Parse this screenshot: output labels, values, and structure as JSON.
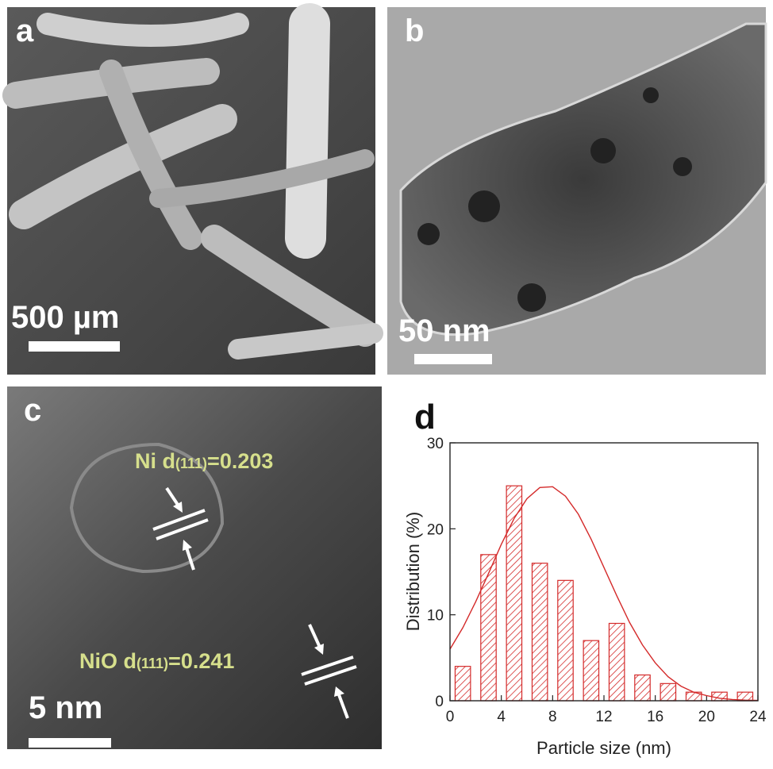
{
  "panels": {
    "a": {
      "label": "a",
      "scale": "500 µm"
    },
    "b": {
      "label": "b",
      "scale": "50 nm"
    },
    "c": {
      "label": "c",
      "scale": "5 nm",
      "ni": {
        "prefix": "Ni d",
        "sub": "(111)",
        "suffix": "=0.203"
      },
      "nio": {
        "prefix": "NiO d",
        "sub": "(111)",
        "suffix": "=0.241"
      }
    }
  },
  "chart_data": {
    "type": "bar",
    "panel_label": "d",
    "x_label": "Particle size (nm)",
    "y_label": "Distribution (%)",
    "x": [
      1,
      3,
      5,
      7,
      9,
      11,
      13,
      15,
      17,
      19,
      21,
      23
    ],
    "values": [
      4,
      17,
      25,
      16,
      14,
      7,
      9,
      3,
      2,
      1,
      1,
      1
    ],
    "color": "#d42a2a",
    "hatch": true,
    "fit": {
      "color": "#d42a2a",
      "x": [
        0,
        1,
        2,
        3,
        4,
        5,
        6,
        7,
        8,
        9,
        10,
        11,
        12,
        13,
        14,
        15,
        16,
        17,
        18,
        19,
        20,
        21,
        22,
        23,
        24
      ],
      "values": [
        6.0,
        8.5,
        11.5,
        14.8,
        18.2,
        21.2,
        23.5,
        24.8,
        24.9,
        23.8,
        21.7,
        18.8,
        15.5,
        12.2,
        9.1,
        6.5,
        4.4,
        2.8,
        1.7,
        1.0,
        0.6,
        0.3,
        0.15,
        0.07,
        0.04
      ]
    },
    "xlim": [
      0,
      24
    ],
    "xticks": [
      0,
      4,
      8,
      12,
      16,
      20,
      24
    ],
    "ylim": [
      0,
      30
    ],
    "yticks": [
      0,
      10,
      20,
      30
    ]
  }
}
